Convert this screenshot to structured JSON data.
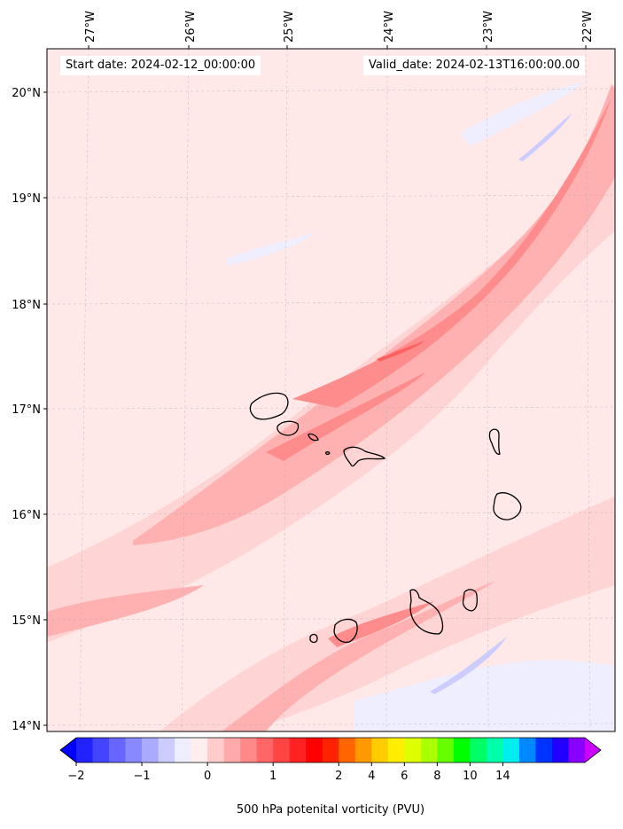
{
  "map": {
    "start_date_label": "Start date: 2024-02-12_00:00:00",
    "valid_date_label": "Valid_date: 2024-02-13T16:00:00.00",
    "lon_ticks": [
      "27°W",
      "26°W",
      "25°W",
      "24°W",
      "23°W",
      "22°W"
    ],
    "lat_ticks": [
      "20°N",
      "19°N",
      "18°N",
      "17°N",
      "16°N",
      "15°N",
      "14°N"
    ],
    "colors": {
      "background": "#ffe8e8",
      "pale_pink": "#ffd4d4",
      "pink": "#ffb0b0",
      "rose": "#ff8c8c",
      "red": "#ff6060",
      "pale_blue": "#eeeeff",
      "light_blue": "#ccccff",
      "coast": "#000000"
    },
    "islands": [
      "Santo Antão",
      "São Vicente",
      "Santa Luzia",
      "São Nicolau",
      "Sal",
      "Boa Vista",
      "Brava",
      "Fogo",
      "Santiago",
      "Maio",
      "Raso"
    ]
  },
  "colorbar": {
    "label": "500 hPa potenital vorticity (PVU)",
    "tick_labels": [
      "−2",
      "−1",
      "0",
      "1",
      "2",
      "4",
      "6",
      "8",
      "10",
      "14"
    ],
    "colors": [
      "#0000ff",
      "#2222ff",
      "#4444ff",
      "#6666ff",
      "#8888ff",
      "#aaaaff",
      "#ccccff",
      "#eeeeff",
      "#ffeeee",
      "#ffcccc",
      "#ffaaaa",
      "#ff8888",
      "#ff6666",
      "#ff4444",
      "#ff2222",
      "#ff0000",
      "#ff2200",
      "#ff6600",
      "#ff9900",
      "#ffcc00",
      "#ffee00",
      "#ddff00",
      "#aaff00",
      "#66ff00",
      "#00ff00",
      "#00ff66",
      "#00ffaa",
      "#00eeee",
      "#0088ff",
      "#0033ff",
      "#2200ff",
      "#8800ff",
      "#cc00ff"
    ],
    "extend": "both"
  }
}
